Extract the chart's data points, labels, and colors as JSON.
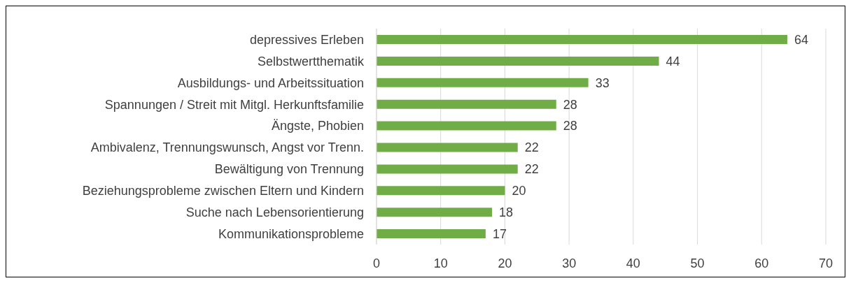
{
  "chart_data": {
    "type": "bar",
    "orientation": "horizontal",
    "categories": [
      "depressives Erleben",
      "Selbstwertthematik",
      "Ausbildungs- und Arbeitssituation",
      "Spannungen / Streit mit Mitgl. Herkunftsfamilie",
      "Ängste, Phobien",
      "Ambivalenz, Trennungswunsch, Angst vor Trenn.",
      "Bewältigung von Trennung",
      "Beziehungsprobleme zwischen Eltern und Kindern",
      "Suche nach Lebensorientierung",
      "Kommunikationsprobleme"
    ],
    "values": [
      64,
      44,
      33,
      28,
      28,
      22,
      22,
      20,
      18,
      17
    ],
    "color": "#70ad47",
    "xlim": [
      0,
      70
    ],
    "xticks": [
      0,
      10,
      20,
      30,
      40,
      50,
      60,
      70
    ],
    "grid": "x",
    "data_labels": true
  }
}
